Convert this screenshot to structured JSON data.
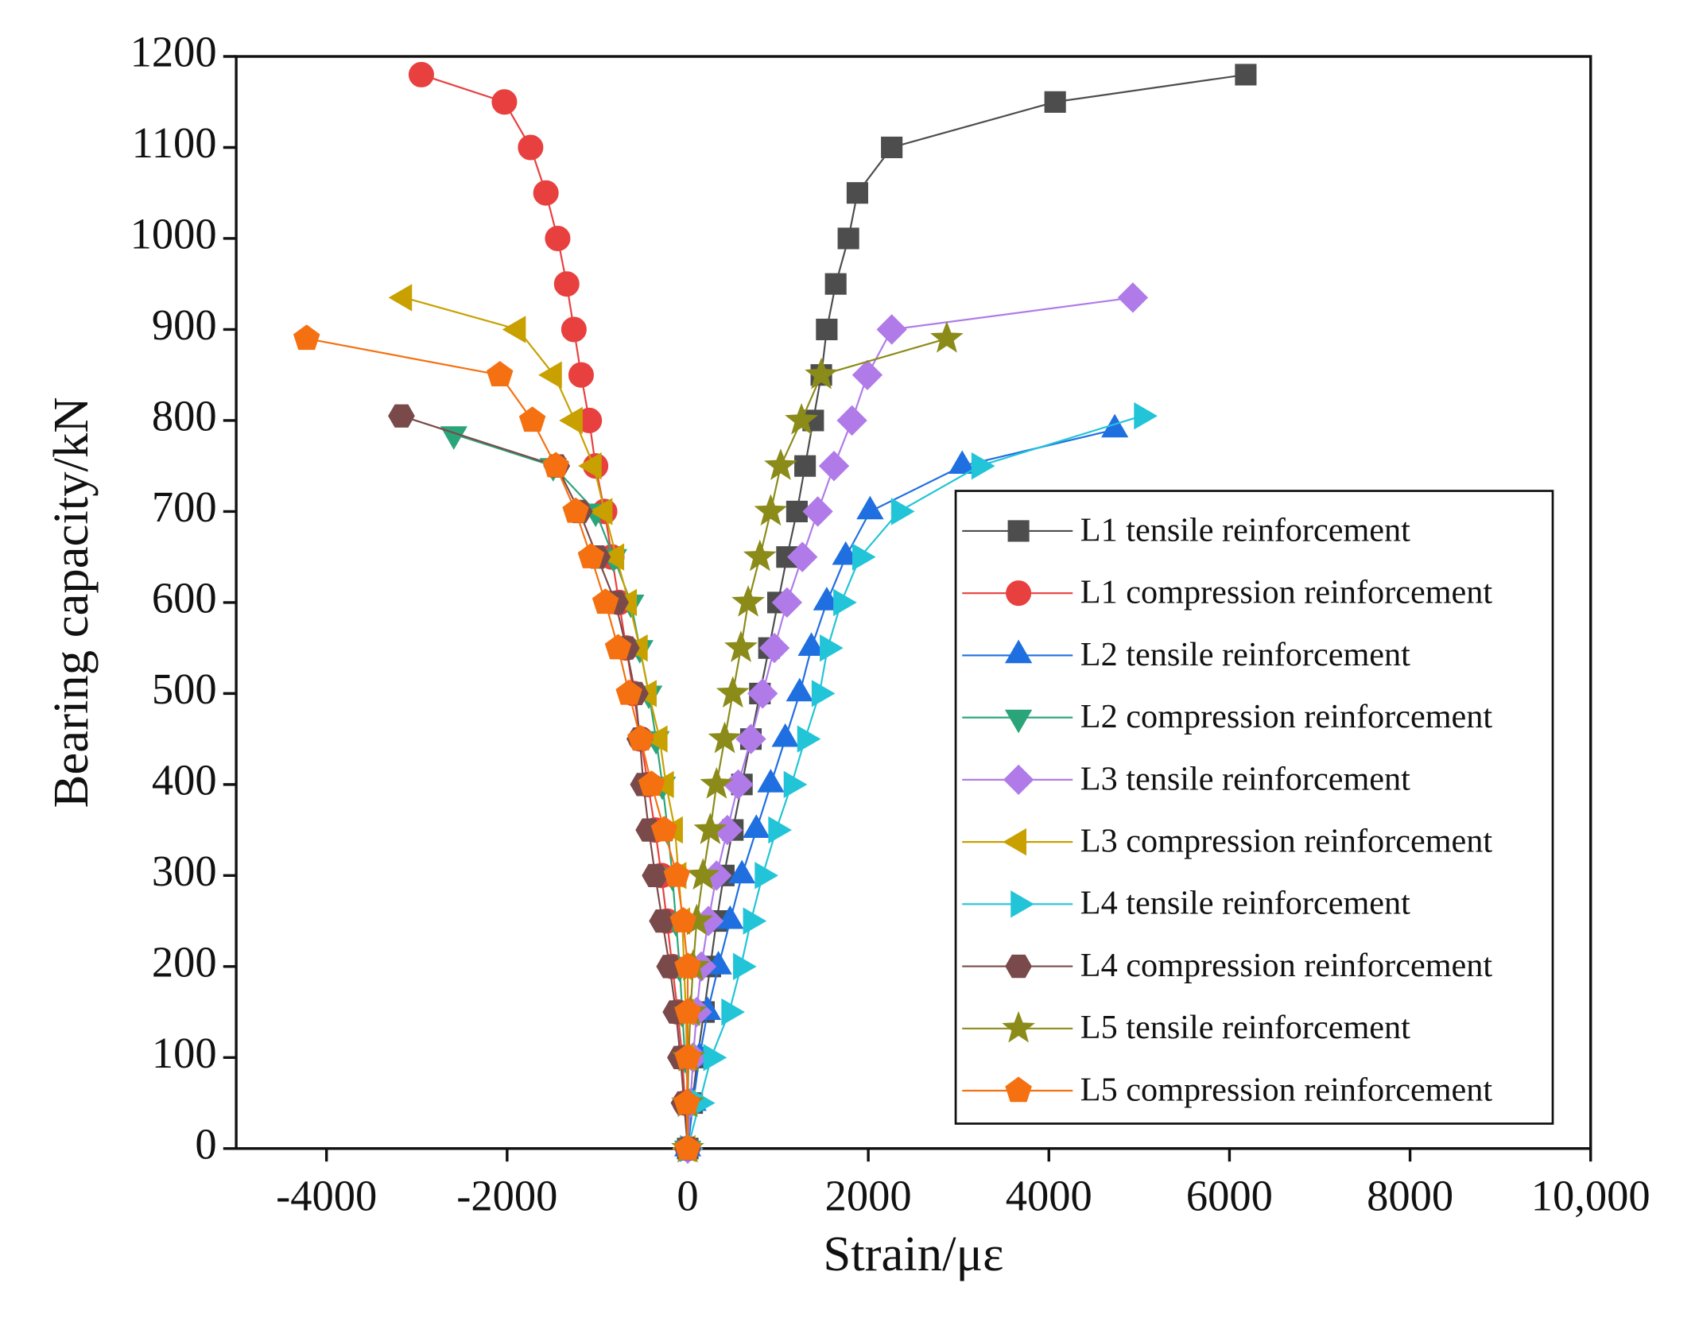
{
  "chart_data": {
    "type": "line",
    "x_label": "Strain/με",
    "y_label": "Bearing capacity/kN",
    "xlim": [
      -5000,
      10000
    ],
    "xticks": [
      -4000,
      -2000,
      0,
      2000,
      4000,
      6000,
      8000,
      {
        "value": 10000,
        "label": "10,000"
      }
    ],
    "ylim": [
      0,
      1200
    ],
    "yticks": [
      0,
      100,
      200,
      300,
      400,
      500,
      600,
      700,
      800,
      900,
      1000,
      1100,
      1200
    ],
    "legend": "lower right",
    "series": [
      {
        "name": "L1 tensile reinforcement",
        "color": "#4d4d4d",
        "marker": "square",
        "x": [
          0,
          50,
          110,
          180,
          250,
          320,
          400,
          500,
          600,
          700,
          800,
          900,
          1000,
          1100,
          1210,
          1300,
          1390,
          1480,
          1540,
          1640,
          1780,
          1880,
          2260,
          4070,
          6180
        ],
        "values": [
          0,
          50,
          100,
          150,
          200,
          250,
          300,
          350,
          400,
          450,
          500,
          550,
          600,
          650,
          700,
          750,
          800,
          850,
          900,
          950,
          1000,
          1050,
          1100,
          1150,
          1180
        ]
      },
      {
        "name": "L1 compression reinforcement",
        "color": "#e8403f",
        "marker": "circle",
        "x": [
          0,
          -30,
          -60,
          -110,
          -170,
          -230,
          -290,
          -360,
          -440,
          -520,
          -600,
          -680,
          -760,
          -840,
          -920,
          -1020,
          -1090,
          -1180,
          -1260,
          -1340,
          -1440,
          -1570,
          -1740,
          -2030,
          -2950
        ],
        "values": [
          0,
          50,
          100,
          150,
          200,
          250,
          300,
          350,
          400,
          450,
          500,
          550,
          600,
          650,
          700,
          750,
          800,
          850,
          900,
          950,
          1000,
          1050,
          1100,
          1150,
          1180
        ]
      },
      {
        "name": "L2 tensile reinforcement",
        "color": "#1f6fe0",
        "marker": "triangle-up",
        "x": [
          0,
          60,
          130,
          220,
          340,
          470,
          600,
          760,
          920,
          1080,
          1240,
          1370,
          1540,
          1750,
          2020,
          3040,
          4730
        ],
        "values": [
          0,
          50,
          100,
          150,
          200,
          250,
          300,
          350,
          400,
          450,
          500,
          550,
          600,
          650,
          700,
          750,
          790
        ]
      },
      {
        "name": "L2 compression reinforcement",
        "color": "#2aa57a",
        "marker": "triangle-down",
        "x": [
          0,
          20,
          -30,
          -60,
          -90,
          -130,
          -170,
          -220,
          -280,
          -350,
          -430,
          -530,
          -630,
          -820,
          -1020,
          -1490,
          -2590
        ],
        "values": [
          0,
          50,
          100,
          150,
          200,
          250,
          300,
          350,
          400,
          450,
          500,
          550,
          600,
          650,
          700,
          750,
          785
        ]
      },
      {
        "name": "L3 tensile reinforcement",
        "color": "#b07be8",
        "marker": "diamond",
        "x": [
          0,
          30,
          60,
          100,
          150,
          230,
          320,
          440,
          560,
          700,
          830,
          960,
          1100,
          1270,
          1440,
          1620,
          1820,
          1990,
          2260,
          4930
        ],
        "values": [
          0,
          50,
          100,
          150,
          200,
          250,
          300,
          350,
          400,
          450,
          500,
          550,
          600,
          650,
          700,
          750,
          800,
          850,
          900,
          935
        ]
      },
      {
        "name": "L3 compression reinforcement",
        "color": "#c8a000",
        "marker": "triangle-left",
        "x": [
          0,
          0,
          -10,
          -20,
          -40,
          -60,
          -100,
          -140,
          -240,
          -310,
          -430,
          -530,
          -650,
          -790,
          -920,
          -1040,
          -1250,
          -1480,
          -1880,
          -3140
        ],
        "values": [
          0,
          50,
          100,
          150,
          200,
          250,
          300,
          350,
          400,
          450,
          500,
          550,
          600,
          650,
          700,
          750,
          800,
          850,
          900,
          935
        ]
      },
      {
        "name": "L4 tensile reinforcement",
        "color": "#22c4d8",
        "marker": "triangle-right",
        "x": [
          0,
          130,
          260,
          460,
          590,
          700,
          830,
          980,
          1150,
          1300,
          1460,
          1550,
          1700,
          1910,
          2340,
          3230,
          5030
        ],
        "values": [
          0,
          50,
          100,
          150,
          200,
          250,
          300,
          350,
          400,
          450,
          500,
          550,
          600,
          650,
          700,
          750,
          805
        ]
      },
      {
        "name": "L4 compression reinforcement",
        "color": "#7a4a4a",
        "marker": "hexagon",
        "x": [
          0,
          -40,
          -80,
          -130,
          -200,
          -280,
          -360,
          -430,
          -490,
          -530,
          -580,
          -680,
          -800,
          -1000,
          -1200,
          -1450,
          -3170
        ],
        "values": [
          0,
          50,
          100,
          150,
          200,
          250,
          300,
          350,
          400,
          450,
          500,
          550,
          600,
          650,
          700,
          750,
          805
        ]
      },
      {
        "name": "L5 tensile reinforcement",
        "color": "#8b8b1a",
        "marker": "star",
        "x": [
          0,
          0,
          10,
          30,
          60,
          100,
          170,
          250,
          320,
          410,
          500,
          590,
          670,
          800,
          920,
          1030,
          1260,
          1480,
          2870
        ],
        "values": [
          0,
          50,
          100,
          150,
          200,
          250,
          300,
          350,
          400,
          450,
          500,
          550,
          600,
          650,
          700,
          750,
          800,
          850,
          890
        ]
      },
      {
        "name": "L5 compression reinforcement",
        "color": "#f57010",
        "marker": "pentagon",
        "x": [
          0,
          -10,
          0,
          0,
          0,
          -50,
          -120,
          -260,
          -400,
          -520,
          -650,
          -770,
          -910,
          -1070,
          -1240,
          -1460,
          -1720,
          -2080,
          -4220
        ],
        "values": [
          0,
          50,
          100,
          150,
          200,
          250,
          300,
          350,
          400,
          450,
          500,
          550,
          600,
          650,
          700,
          750,
          800,
          850,
          890
        ]
      }
    ]
  }
}
